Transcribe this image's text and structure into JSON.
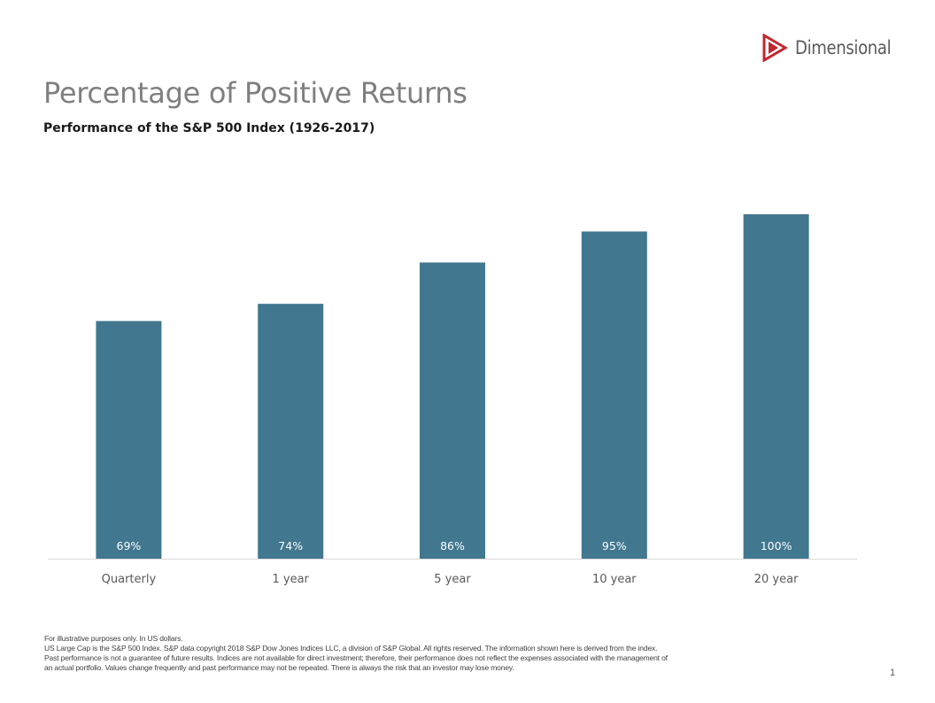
{
  "brand": {
    "name": "Dimensional"
  },
  "title": "Percentage of Positive Returns",
  "subtitle": "Performance of the S&P 500 Index (1926-2017)",
  "chart_data": {
    "type": "bar",
    "categories": [
      "Quarterly",
      "1 year",
      "5 year",
      "10 year",
      "20 year"
    ],
    "values": [
      69,
      74,
      86,
      95,
      100
    ],
    "data_labels": [
      "69%",
      "74%",
      "86%",
      "95%",
      "100%"
    ],
    "title": "",
    "xlabel": "",
    "ylabel": "",
    "ylim": [
      0,
      100
    ],
    "grid": false,
    "legend": "none",
    "bar_color": "#41778f",
    "label_color": "#ffffff"
  },
  "footnotes": [
    "For illustrative purposes only. In US dollars.",
    "US Large Cap is the S&P 500 Index. S&P data copyright 2018 S&P Dow Jones Indices LLC, a division of S&P Global. All rights reserved. The information shown here is derived from the index.",
    "Past performance is not a guarantee of future results. Indices are not available for direct investment; therefore, their performance does not reflect the expenses associated with the management of",
    "an actual portfolio. Values change frequently and past performance may not be repeated. There is always the risk that an investor may lose money."
  ],
  "page_number": "1",
  "colors": {
    "brand_red": "#c0272d",
    "title_gray": "#7f7f7f"
  }
}
